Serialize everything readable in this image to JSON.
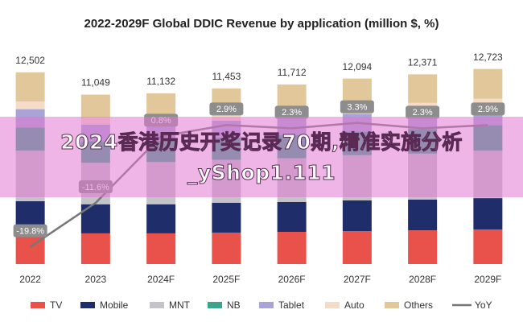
{
  "chart_data": {
    "type": "bar",
    "stacked": true,
    "title": "2022-2029F Global DDIC Revenue by application (million $, %)",
    "categories": [
      "2022",
      "2023",
      "2024F",
      "2025F",
      "2026F",
      "2027F",
      "2028F",
      "2029F"
    ],
    "total_labels": [
      "12,502",
      "11,049",
      "11,132",
      "11,453",
      "11,712",
      "12,094",
      "12,371",
      "12,723"
    ],
    "ylim": [
      0,
      12600
    ],
    "y2lim": [
      -23,
      13
    ],
    "series": [
      {
        "name": "TV",
        "color": "#e8524a",
        "values": [
          2100,
          2000,
          2000,
          2050,
          2100,
          2150,
          2200,
          2250
        ]
      },
      {
        "name": "Mobile",
        "color": "#1f2d6b",
        "values": [
          2000,
          1900,
          1900,
          1950,
          1950,
          2000,
          2000,
          2050
        ]
      },
      {
        "name": "MNT",
        "color": "#c4c4c8",
        "values": [
          3300,
          2700,
          2750,
          2800,
          2850,
          2950,
          3000,
          3100
        ]
      },
      {
        "name": "NB",
        "color": "#3aa58a",
        "values": [
          1500,
          1400,
          1400,
          1450,
          1500,
          1550,
          1600,
          1650
        ]
      },
      {
        "name": "Tablet",
        "color": "#a9a3d6",
        "values": [
          1200,
          1100,
          1100,
          1100,
          1100,
          1150,
          1150,
          1150
        ]
      },
      {
        "name": "Auto",
        "color": "#f5dcc8",
        "values": [
          500,
          450,
          480,
          500,
          520,
          540,
          560,
          580
        ]
      },
      {
        "name": "Others",
        "color": "#e2c79b",
        "values": [
          1902,
          1499,
          1502,
          1603,
          1692,
          1754,
          1861,
          1943
        ]
      },
      {
        "name": "YoY",
        "type": "line",
        "axis": "y2",
        "color": "#777777",
        "values": [
          -19.8,
          -11.6,
          0.8,
          2.9,
          2.3,
          3.3,
          2.3,
          2.9
        ],
        "value_labels": [
          "-19.8%",
          "-11.6%",
          "0.8%",
          "2.9%",
          "2.3%",
          "3.3%",
          "2.3%",
          "2.9%"
        ]
      }
    ]
  },
  "overlay_text": "2024香港历史开奖记录70期,精准实施分析_yShop1.111"
}
